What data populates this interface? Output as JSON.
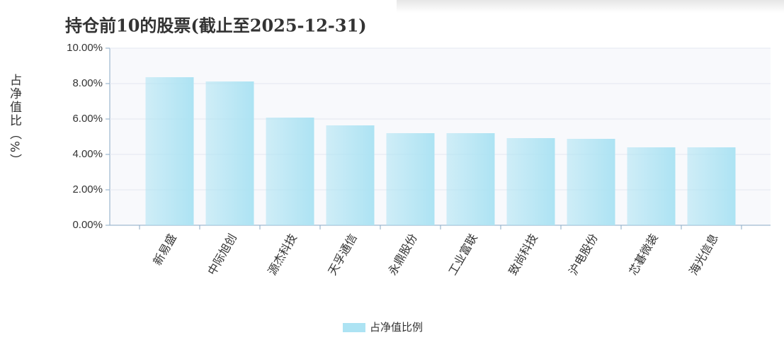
{
  "chart_data": {
    "type": "bar",
    "title": "持仓前10的股票(截止至2025-12-31)",
    "y_label": "占净值比（%）",
    "categories": [
      "新易盛",
      "中际旭创",
      "源杰科技",
      "天孚通信",
      "永鼎股份",
      "工业富联",
      "致尚科技",
      "沪电股份",
      "芯碁微装",
      "海光信息"
    ],
    "series": [
      {
        "name": "占净值比例",
        "color": "#ade3f3",
        "values": [
          8.36,
          8.12,
          6.08,
          5.64,
          5.2,
          5.2,
          4.92,
          4.88,
          4.4,
          4.4
        ]
      }
    ],
    "ylim": [
      0,
      10
    ],
    "yticks": [
      {
        "value": 0,
        "label": "0.00%"
      },
      {
        "value": 2,
        "label": "2.00%"
      },
      {
        "value": 4,
        "label": "4.00%"
      },
      {
        "value": 6,
        "label": "6.00%"
      },
      {
        "value": 8,
        "label": "8.00%"
      },
      {
        "value": 10,
        "label": "10.00%"
      }
    ],
    "grid": true
  }
}
